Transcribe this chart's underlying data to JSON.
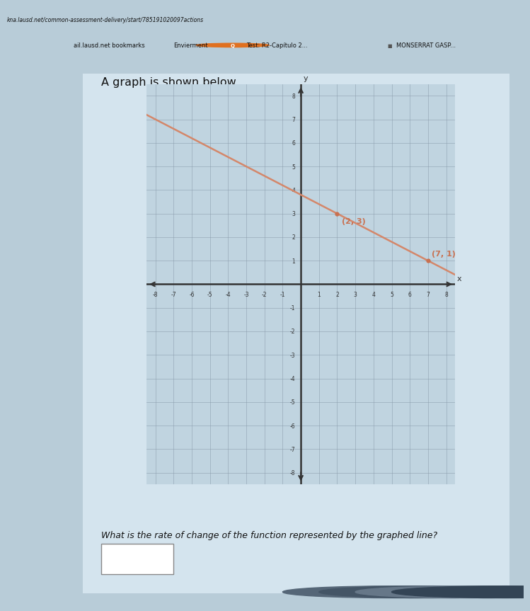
{
  "title": "A graph is shown below.",
  "question": "What is the rate of change of the function represented by the graphed line?",
  "xlim": [
    -8.5,
    8.5
  ],
  "ylim": [
    -8.5,
    8.5
  ],
  "point1": [
    2,
    3
  ],
  "point2": [
    7,
    1
  ],
  "label1": "(2, 3)",
  "label2": "(7, 1)",
  "line_color": "#d4876a",
  "point_color": "#c87050",
  "grid_color": "#8899aa",
  "axis_color": "#333333",
  "bg_color": "#c8d8e4",
  "graph_bg": "#c0d4e0",
  "outer_bg": "#b8ccd8",
  "content_bg": "#c8d8e4",
  "browser_top_bg": "#9ab0bc",
  "browser_bar_bg": "#b0c4cc",
  "url_text": "kna.lausd.net/common-assessment-delivery/start/785191020097actions",
  "bookmark_text": "ail.lausd.net bookmarks",
  "envierment_text": "Envierment",
  "test_text": "Test: R2-Capítulo 2...",
  "user_text": "MONSERRAT GASP...",
  "slope_line_x_start": -8,
  "slope_line_y_start": 7.0,
  "slope_line_x_end": 8,
  "slope_line_y_end": 0.6
}
